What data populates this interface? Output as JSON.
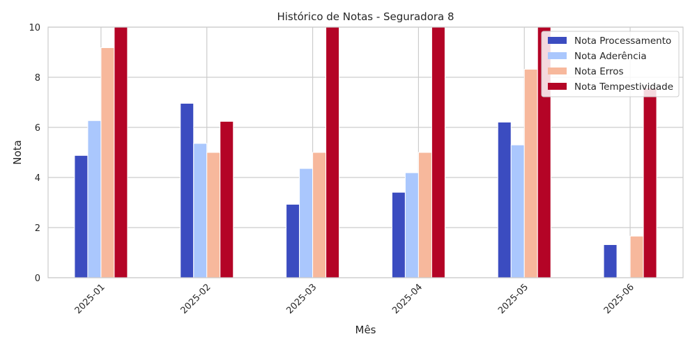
{
  "chart_data": {
    "type": "bar",
    "title": "Histórico de Notas - Seguradora 8",
    "xlabel": "Mês",
    "ylabel": "Nota",
    "categories": [
      "2025-01",
      "2025-02",
      "2025-03",
      "2025-04",
      "2025-05",
      "2025-06"
    ],
    "ylim": [
      0,
      10
    ],
    "yticks": [
      0,
      2,
      4,
      6,
      8,
      10
    ],
    "grid": true,
    "legend_position": "top-right",
    "series": [
      {
        "name": "Nota Processamento",
        "color": "#3b4cc0",
        "values": [
          4.88,
          6.96,
          2.93,
          3.41,
          6.21,
          1.32
        ]
      },
      {
        "name": "Nota Aderência",
        "color": "#aac7fd",
        "values": [
          6.27,
          5.36,
          4.36,
          4.19,
          5.3,
          0
        ]
      },
      {
        "name": "Nota Erros",
        "color": "#f7b89c",
        "values": [
          9.18,
          5.0,
          5.0,
          5.0,
          8.32,
          1.66
        ]
      },
      {
        "name": "Nota Tempestividade",
        "color": "#b40426",
        "values": [
          10.0,
          6.24,
          10.0,
          10.0,
          10.0,
          7.56
        ]
      }
    ]
  }
}
